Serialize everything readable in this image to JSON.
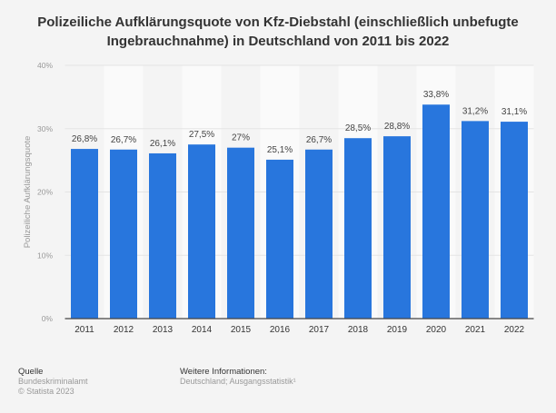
{
  "chart_data": {
    "type": "bar",
    "title": "Polizeiliche Aufklärungsquote von Kfz-Diebstahl (einschließlich unbefugte Ingebrauchnahme) in Deutschland von 2011 bis 2022",
    "xlabel": "",
    "ylabel": "Polizeiliche Aufklärungsquote",
    "categories": [
      "2011",
      "2012",
      "2013",
      "2014",
      "2015",
      "2016",
      "2017",
      "2018",
      "2019",
      "2020",
      "2021",
      "2022"
    ],
    "values": [
      26.8,
      26.7,
      26.1,
      27.5,
      27,
      25.1,
      26.7,
      28.5,
      28.8,
      33.8,
      31.2,
      31.1
    ],
    "data_labels": [
      "26,8%",
      "26,7%",
      "26,1%",
      "27,5%",
      "27%",
      "25,1%",
      "26,7%",
      "28,5%",
      "28,8%",
      "33,8%",
      "31,2%",
      "31,1%"
    ],
    "ylim": [
      0,
      40
    ],
    "yticks": [
      0,
      10,
      20,
      30,
      40
    ],
    "ytick_labels": [
      "0%",
      "10%",
      "20%",
      "30%",
      "40%"
    ],
    "grid": true,
    "bar_color": "#2876dd"
  },
  "footer": {
    "source_heading": "Quelle",
    "source": "Bundeskriminalamt",
    "copyright": "© Statista 2023",
    "info_heading": "Weitere Informationen:",
    "info": "Deutschland; Ausgangsstatistik¹"
  }
}
